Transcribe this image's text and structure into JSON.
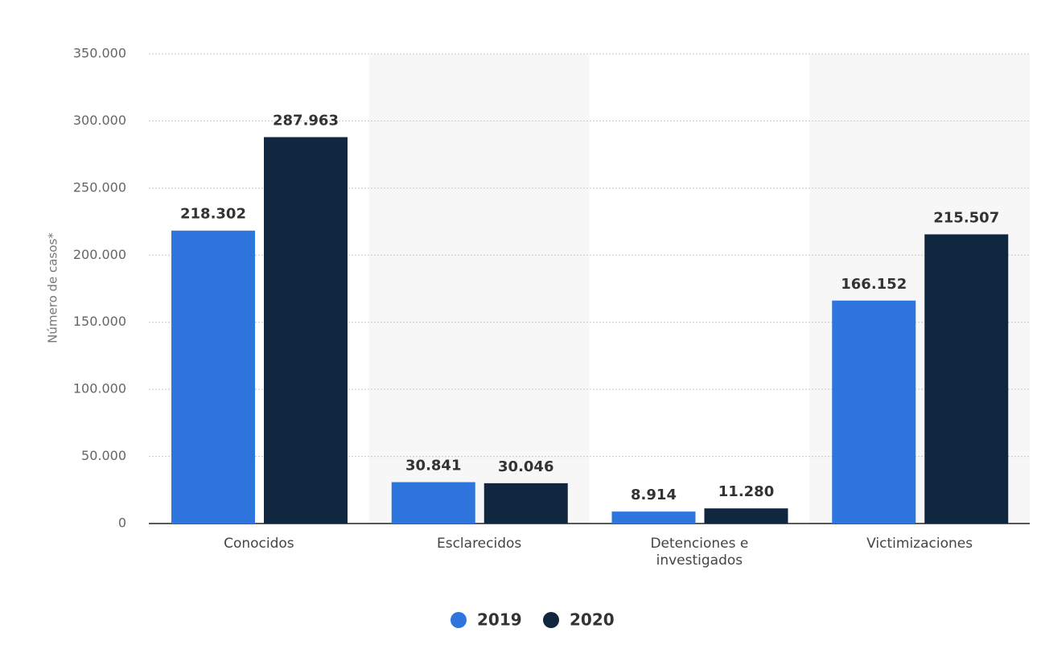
{
  "chart_data": {
    "type": "bar",
    "y_label": "Número de casos*",
    "categories": [
      "Conocidos",
      "Esclarecidos",
      "Detenciones e investigados",
      "Victimizaciones"
    ],
    "series": [
      {
        "name": "2019",
        "color": "#2f75de",
        "values": [
          218302,
          30841,
          8914,
          166152
        ],
        "value_labels": [
          "218.302",
          "30.841",
          "8.914",
          "166.152"
        ]
      },
      {
        "name": "2020",
        "color": "#11273f",
        "values": [
          287963,
          30046,
          11280,
          215507
        ],
        "value_labels": [
          "287.963",
          "30.046",
          "11.280",
          "215.507"
        ]
      }
    ],
    "ylim": [
      0,
      350000
    ],
    "yticks": [
      0,
      {
        "value": 50000,
        "label": "50.000"
      },
      {
        "value": 100000,
        "label": "100.000"
      },
      {
        "value": 150000,
        "label": "150.000"
      },
      {
        "value": 200000,
        "label": "200.000"
      },
      {
        "value": 250000,
        "label": "250.000"
      },
      {
        "value": 300000,
        "label": "300.000"
      },
      {
        "value": 350000,
        "label": "350.000"
      }
    ],
    "grid": true
  }
}
